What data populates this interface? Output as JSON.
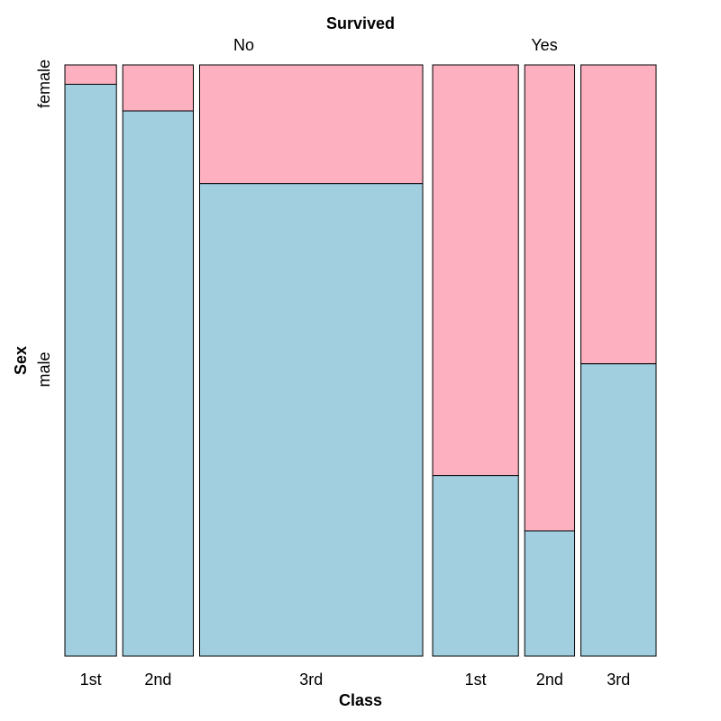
{
  "chart_data": {
    "type": "mosaic",
    "title": "Survived",
    "xlabel": "Class",
    "ylabel": "Sex",
    "top_labels": [
      "No",
      "Yes"
    ],
    "x_labels": [
      "1st",
      "2nd",
      "3rd",
      "1st",
      "2nd",
      "3rd"
    ],
    "y_labels": [
      "male",
      "female"
    ],
    "colors": {
      "male": "#A1CFE0",
      "female": "#FDB0C0"
    },
    "groups": [
      {
        "survived": "No",
        "cells": [
          {
            "class": "1st",
            "male": 118,
            "female": 4
          },
          {
            "class": "2nd",
            "male": 154,
            "female": 13
          },
          {
            "class": "3rd",
            "male": 422,
            "female": 106
          }
        ]
      },
      {
        "survived": "Yes",
        "cells": [
          {
            "class": "1st",
            "male": 62,
            "female": 141
          },
          {
            "class": "2nd",
            "male": 25,
            "female": 93
          },
          {
            "class": "3rd",
            "male": 88,
            "female": 90
          }
        ]
      }
    ]
  }
}
